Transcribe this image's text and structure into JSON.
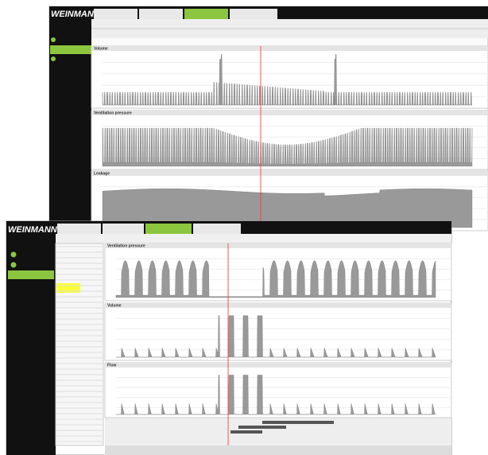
{
  "back_window": {
    "logo": "WEINMANN",
    "panels": [
      "Volume",
      "Ventilation pressure",
      "Leakage"
    ]
  },
  "front_window": {
    "logo": "WEINMANN",
    "panels": [
      "Ventilation pressure",
      "Volume",
      "Flow"
    ]
  }
}
